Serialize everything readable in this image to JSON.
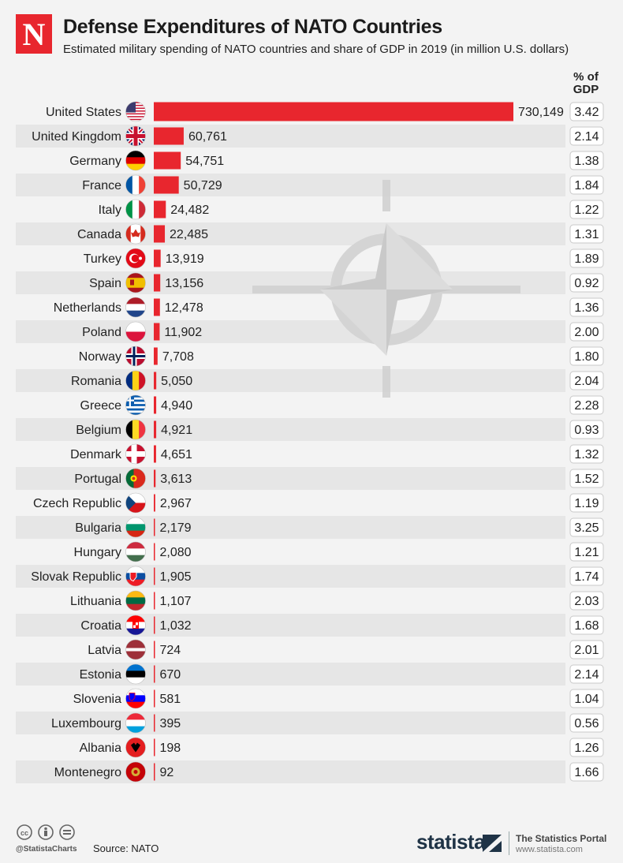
{
  "header": {
    "logo_letter": "N",
    "title": "Defense Expenditures of NATO Countries",
    "subtitle": "Estimated military spending of NATO countries and share of GDP in 2019 (in million U.S. dollars)",
    "gdp_label_line1": "% of",
    "gdp_label_line2": "GDP"
  },
  "colors": {
    "bar": "#e8262e",
    "stripe": "#e6e6e6",
    "background": "#f3f3f3"
  },
  "chart_data": {
    "type": "bar",
    "orientation": "horizontal",
    "title": "Defense Expenditures of NATO Countries",
    "subtitle": "Estimated military spending of NATO countries and share of GDP in 2019 (in million U.S. dollars)",
    "categories": [
      "United States",
      "United Kingdom",
      "Germany",
      "France",
      "Italy",
      "Canada",
      "Turkey",
      "Spain",
      "Netherlands",
      "Poland",
      "Norway",
      "Romania",
      "Greece",
      "Belgium",
      "Denmark",
      "Portugal",
      "Czech Republic",
      "Bulgaria",
      "Hungary",
      "Slovak Republic",
      "Lithuania",
      "Croatia",
      "Latvia",
      "Estonia",
      "Slovenia",
      "Luxembourg",
      "Albania",
      "Montenegro"
    ],
    "values": [
      730149,
      60761,
      54751,
      50729,
      24482,
      22485,
      13919,
      13156,
      12478,
      11902,
      7708,
      5050,
      4940,
      4921,
      4651,
      3613,
      2967,
      2179,
      2080,
      1905,
      1107,
      1032,
      724,
      670,
      581,
      395,
      198,
      92
    ],
    "value_labels": [
      "730,149",
      "60,761",
      "54,751",
      "50,729",
      "24,482",
      "22,485",
      "13,919",
      "13,156",
      "12,478",
      "11,902",
      "7,708",
      "5,050",
      "4,940",
      "4,921",
      "4,651",
      "3,613",
      "2,967",
      "2,179",
      "2,080",
      "1,905",
      "1,107",
      "1,032",
      "724",
      "670",
      "581",
      "395",
      "198",
      "92"
    ],
    "gdp_share_label": "% of GDP",
    "gdp_share": [
      "3.42",
      "2.14",
      "1.38",
      "1.84",
      "1.22",
      "1.31",
      "1.89",
      "0.92",
      "1.36",
      "2.00",
      "1.80",
      "2.04",
      "2.28",
      "0.93",
      "1.32",
      "1.52",
      "1.19",
      "3.25",
      "1.21",
      "1.74",
      "2.03",
      "1.68",
      "2.01",
      "2.14",
      "1.04",
      "0.56",
      "1.26",
      "1.66"
    ],
    "flags": [
      "flag-us-icon",
      "flag-uk-icon",
      "flag-de-icon",
      "flag-fr-icon",
      "flag-it-icon",
      "flag-ca-icon",
      "flag-tr-icon",
      "flag-es-icon",
      "flag-nl-icon",
      "flag-pl-icon",
      "flag-no-icon",
      "flag-ro-icon",
      "flag-gr-icon",
      "flag-be-icon",
      "flag-dk-icon",
      "flag-pt-icon",
      "flag-cz-icon",
      "flag-bg-icon",
      "flag-hu-icon",
      "flag-sk-icon",
      "flag-lt-icon",
      "flag-hr-icon",
      "flag-lv-icon",
      "flag-ee-icon",
      "flag-si-icon",
      "flag-lu-icon",
      "flag-al-icon",
      "flag-me-icon"
    ],
    "xlim": [
      0,
      730149
    ],
    "grid": false,
    "legend": "none"
  },
  "footer": {
    "handle": "@StatistaCharts",
    "source": "Source: NATO",
    "brand": "statista",
    "portal_title": "The Statistics Portal",
    "portal_url": "www.statista.com"
  }
}
